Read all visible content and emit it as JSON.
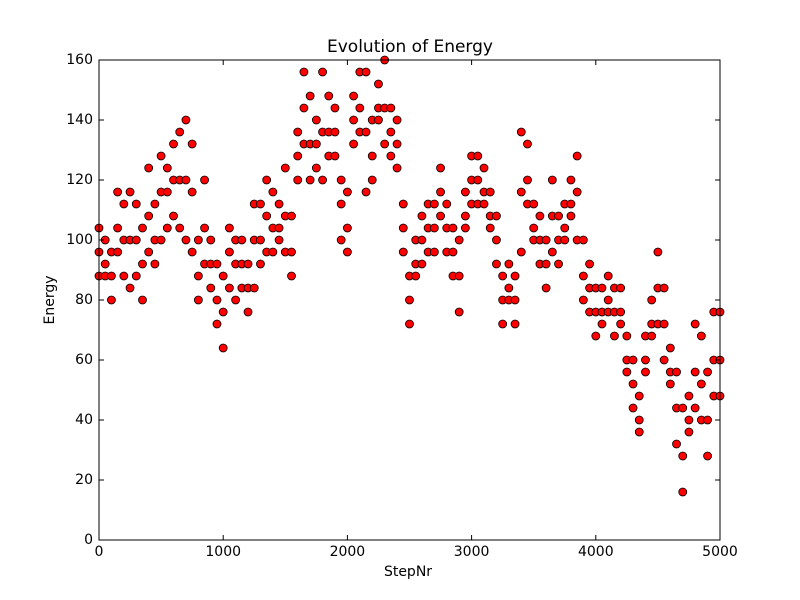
{
  "chart_data": {
    "type": "scatter",
    "title": "Evolution of Energy",
    "x_label": "StepNr",
    "y_label": "Energy",
    "color": "#ff0000",
    "edgecolor": "#000000",
    "xlim": [
      0,
      5000
    ],
    "ylim": [
      0,
      160
    ],
    "xticks": [
      0,
      1000,
      2000,
      3000,
      4000,
      5000
    ],
    "yticks": [
      0,
      20,
      40,
      60,
      80,
      100,
      120,
      140,
      160
    ],
    "x": [
      0,
      0,
      0,
      50,
      50,
      50,
      100,
      100,
      100,
      150,
      150,
      150,
      200,
      200,
      200,
      250,
      250,
      250,
      300,
      300,
      300,
      350,
      350,
      350,
      400,
      400,
      400,
      450,
      450,
      450,
      500,
      500,
      500,
      550,
      550,
      550,
      600,
      600,
      600,
      650,
      650,
      650,
      700,
      700,
      700,
      750,
      750,
      750,
      800,
      800,
      800,
      850,
      850,
      850,
      900,
      900,
      900,
      950,
      950,
      950,
      1000,
      1000,
      1000,
      1050,
      1050,
      1050,
      1100,
      1100,
      1100,
      1150,
      1150,
      1150,
      1200,
      1200,
      1200,
      1250,
      1250,
      1250,
      1300,
      1300,
      1300,
      1350,
      1350,
      1350,
      1400,
      1400,
      1400,
      1450,
      1450,
      1450,
      1500,
      1500,
      1500,
      1550,
      1550,
      1550,
      1600,
      1600,
      1600,
      1650,
      1650,
      1650,
      1700,
      1700,
      1700,
      1750,
      1750,
      1750,
      1800,
      1800,
      1800,
      1850,
      1850,
      1850,
      1900,
      1900,
      1900,
      1950,
      1950,
      1950,
      2000,
      2000,
      2000,
      2050,
      2050,
      2050,
      2100,
      2100,
      2100,
      2150,
      2150,
      2150,
      2200,
      2200,
      2200,
      2250,
      2250,
      2250,
      2300,
      2300,
      2300,
      2350,
      2350,
      2350,
      2400,
      2400,
      2400,
      2450,
      2450,
      2450,
      2500,
      2500,
      2500,
      2550,
      2550,
      2550,
      2600,
      2600,
      2600,
      2650,
      2650,
      2650,
      2700,
      2700,
      2700,
      2750,
      2750,
      2750,
      2800,
      2800,
      2800,
      2850,
      2850,
      2850,
      2900,
      2900,
      2900,
      2950,
      2950,
      2950,
      3000,
      3000,
      3000,
      3050,
      3050,
      3050,
      3100,
      3100,
      3100,
      3150,
      3150,
      3150,
      3200,
      3200,
      3200,
      3250,
      3250,
      3250,
      3300,
      3300,
      3300,
      3350,
      3350,
      3350,
      3400,
      3400,
      3400,
      3450,
      3450,
      3450,
      3500,
      3500,
      3500,
      3550,
      3550,
      3550,
      3600,
      3600,
      3600,
      3650,
      3650,
      3650,
      3700,
      3700,
      3700,
      3750,
      3750,
      3750,
      3800,
      3800,
      3800,
      3850,
      3850,
      3850,
      3900,
      3900,
      3900,
      3950,
      3950,
      3950,
      4000,
      4000,
      4000,
      4050,
      4050,
      4050,
      4100,
      4100,
      4100,
      4150,
      4150,
      4150,
      4200,
      4200,
      4200,
      4250,
      4250,
      4250,
      4300,
      4300,
      4300,
      4350,
      4350,
      4350,
      4400,
      4400,
      4400,
      4450,
      4450,
      4450,
      4500,
      4500,
      4500,
      4550,
      4550,
      4550,
      4600,
      4600,
      4600,
      4650,
      4650,
      4650,
      4700,
      4700,
      4700,
      4750,
      4750,
      4750,
      4800,
      4800,
      4800,
      4850,
      4850,
      4850,
      4900,
      4900,
      4900,
      4950,
      4950,
      4950,
      5000,
      5000,
      5000
    ],
    "values": [
      88,
      96,
      104,
      88,
      92,
      100,
      80,
      88,
      96,
      96,
      104,
      116,
      88,
      100,
      112,
      84,
      100,
      116,
      88,
      100,
      112,
      80,
      92,
      104,
      96,
      108,
      124,
      92,
      100,
      112,
      100,
      116,
      128,
      104,
      116,
      124,
      108,
      120,
      132,
      104,
      120,
      136,
      100,
      120,
      140,
      96,
      116,
      132,
      80,
      88,
      100,
      92,
      104,
      120,
      84,
      92,
      100,
      72,
      80,
      92,
      64,
      76,
      88,
      84,
      96,
      104,
      80,
      92,
      100,
      84,
      92,
      100,
      76,
      84,
      92,
      84,
      100,
      112,
      92,
      100,
      112,
      96,
      108,
      120,
      96,
      104,
      116,
      100,
      104,
      112,
      96,
      108,
      124,
      88,
      96,
      108,
      120,
      128,
      136,
      132,
      144,
      156,
      120,
      132,
      148,
      124,
      132,
      140,
      120,
      136,
      156,
      128,
      136,
      148,
      128,
      136,
      144,
      100,
      112,
      120,
      96,
      104,
      116,
      132,
      140,
      148,
      136,
      144,
      156,
      116,
      136,
      156,
      120,
      128,
      140,
      140,
      144,
      152,
      132,
      144,
      160,
      128,
      136,
      144,
      124,
      132,
      140,
      96,
      104,
      112,
      72,
      80,
      88,
      88,
      92,
      100,
      92,
      100,
      108,
      96,
      104,
      112,
      96,
      104,
      112,
      108,
      116,
      124,
      96,
      104,
      112,
      88,
      96,
      104,
      76,
      88,
      100,
      104,
      108,
      116,
      112,
      120,
      128,
      112,
      120,
      128,
      112,
      116,
      124,
      104,
      108,
      116,
      92,
      100,
      108,
      72,
      80,
      88,
      80,
      84,
      92,
      72,
      80,
      88,
      96,
      116,
      136,
      112,
      120,
      132,
      100,
      104,
      112,
      92,
      100,
      108,
      84,
      92,
      100,
      96,
      108,
      120,
      92,
      100,
      108,
      100,
      104,
      112,
      108,
      112,
      120,
      100,
      116,
      128,
      80,
      88,
      100,
      76,
      84,
      92,
      68,
      76,
      84,
      72,
      76,
      84,
      76,
      80,
      88,
      68,
      76,
      84,
      72,
      76,
      84,
      56,
      60,
      68,
      44,
      52,
      60,
      36,
      40,
      48,
      56,
      60,
      68,
      68,
      72,
      80,
      72,
      84,
      96,
      60,
      72,
      84,
      52,
      56,
      64,
      32,
      44,
      56,
      16,
      28,
      44,
      36,
      40,
      48,
      44,
      56,
      72,
      40,
      52,
      68,
      28,
      40,
      56,
      48,
      60,
      76,
      48,
      60,
      76
    ]
  }
}
